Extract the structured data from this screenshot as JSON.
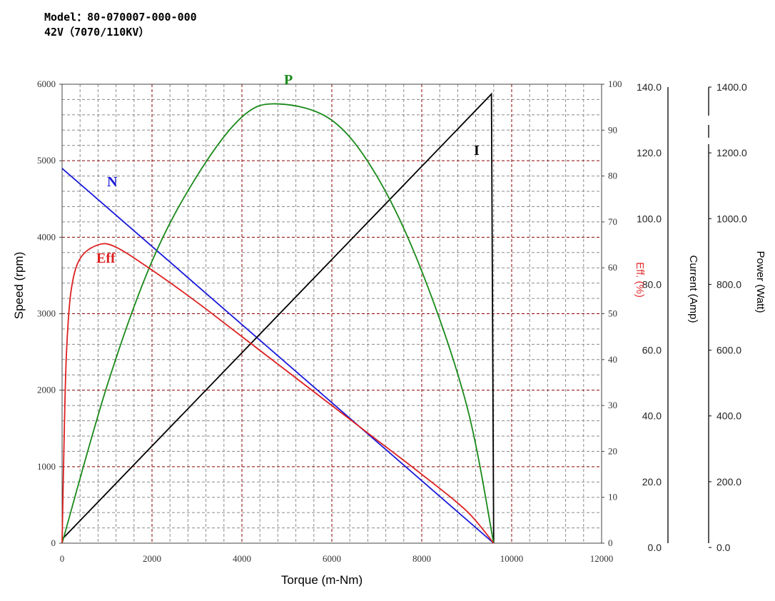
{
  "header": {
    "model_line": "Model：80-070007-000-000",
    "spec_line": "42V（7070/110KV）"
  },
  "chart_data": {
    "type": "line",
    "xlabel": "Torque (m-Nm)",
    "ylabel": "Speed (rpm)",
    "xlim": [
      0,
      12000
    ],
    "ylim": [
      0,
      6000
    ],
    "x_ticks": [
      "0",
      "2000",
      "4000",
      "6000",
      "8000",
      "10000",
      "12000"
    ],
    "y_ticks": [
      "0",
      "1000",
      "2000",
      "3000",
      "4000",
      "5000",
      "6000"
    ],
    "eff_axis": {
      "label": "Eff. (%)",
      "range": [
        0,
        100
      ],
      "ticks": [
        "0",
        "10",
        "20",
        "30",
        "40",
        "50",
        "60",
        "70",
        "80",
        "90",
        "100"
      ]
    },
    "current_axis": {
      "label": "Current (Amp)",
      "range": [
        0,
        140
      ],
      "ticks": [
        "0.0",
        "20.0",
        "40.0",
        "60.0",
        "80.0",
        "100.0",
        "120.0",
        "140.0"
      ]
    },
    "power_axis": {
      "label": "Power (Watt)",
      "range": [
        0,
        1400
      ],
      "ticks": [
        "0.0",
        "200.0",
        "400.0",
        "600.0",
        "800.0",
        "1000.0",
        "1200.0",
        "1400.0"
      ]
    },
    "grid": true,
    "series": [
      {
        "name": "N",
        "color": "#1a1adb",
        "axis": "speed",
        "x": [
          0,
          9600
        ],
        "y": [
          4900,
          0
        ]
      },
      {
        "name": "I",
        "color": "#000000",
        "axis": "current",
        "x": [
          0,
          9550,
          9600
        ],
        "y": [
          1.2,
          137,
          0
        ]
      },
      {
        "name": "P",
        "color": "#1a8a1a",
        "axis": "power",
        "x": [
          0,
          1000,
          2000,
          3000,
          4000,
          4800,
          6000,
          7000,
          8000,
          9000,
          9600
        ],
        "y": [
          0,
          480,
          860,
          1120,
          1300,
          1340,
          1290,
          1120,
          830,
          420,
          0
        ]
      },
      {
        "name": "Eff",
        "color": "#dd2020",
        "axis": "eff",
        "x": [
          0,
          50,
          100,
          200,
          400,
          800,
          1200,
          2000,
          3000,
          4000,
          5000,
          6000,
          7000,
          8000,
          9000,
          9600
        ],
        "y": [
          0,
          25,
          42,
          55,
          62,
          65,
          64.5,
          59.5,
          52.5,
          45,
          37.5,
          30,
          22.5,
          15,
          7,
          0
        ]
      }
    ]
  }
}
